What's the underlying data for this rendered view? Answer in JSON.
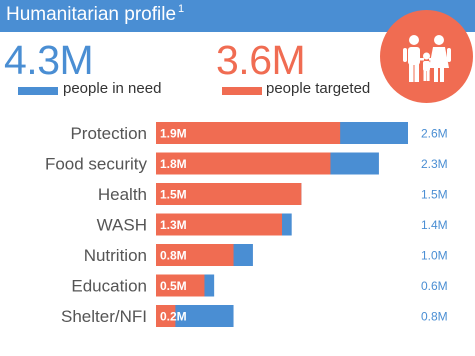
{
  "header": {
    "title": "Humanitarian profile",
    "footnote": "1"
  },
  "summary": {
    "people_in_need_value": "4.3M",
    "people_in_need_label": "people in need",
    "people_targeted_value": "3.6M",
    "people_targeted_label": "people targeted"
  },
  "icons": {
    "family": "family-icon"
  },
  "colors": {
    "in_need": "#4a8ed3",
    "targeted": "#f06c52",
    "header_bg": "#4a8ed3"
  },
  "chart_data": {
    "type": "bar",
    "orientation": "horizontal",
    "categories": [
      "Protection",
      "Food security",
      "Health",
      "WASH",
      "Nutrition",
      "Education",
      "Shelter/NFI"
    ],
    "series": [
      {
        "name": "people in need",
        "values": [
          2.6,
          2.3,
          1.5,
          1.4,
          1.0,
          0.6,
          0.8
        ],
        "labels": [
          "2.6M",
          "2.3M",
          "1.5M",
          "1.4M",
          "1.0M",
          "0.6M",
          "0.8M"
        ]
      },
      {
        "name": "people targeted",
        "values": [
          1.9,
          1.8,
          1.5,
          1.3,
          0.8,
          0.5,
          0.2
        ],
        "labels": [
          "1.9M",
          "1.8M",
          "1.5M",
          "1.3M",
          "0.8M",
          "0.5M",
          "0.2M"
        ]
      }
    ],
    "xlim": [
      0,
      2.6
    ],
    "grid": false
  }
}
